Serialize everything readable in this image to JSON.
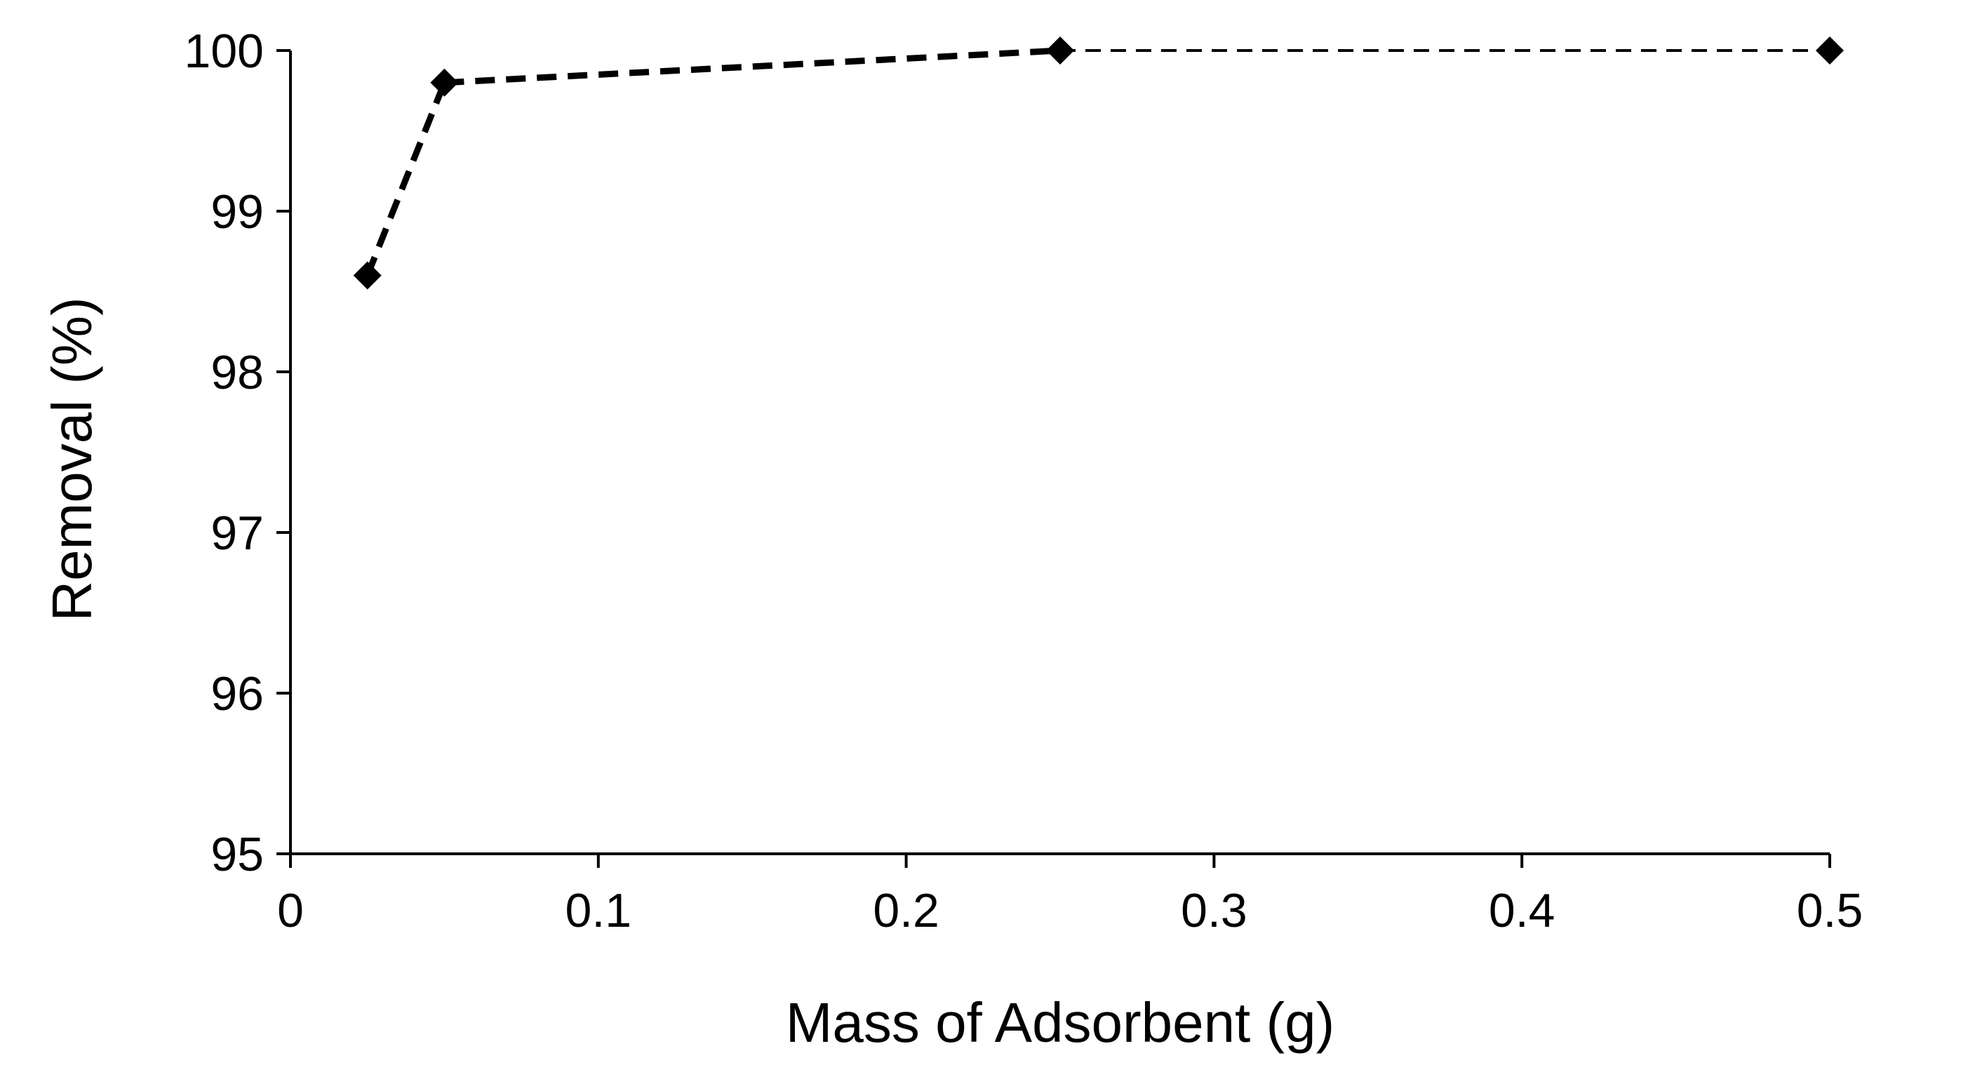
{
  "chart_data": {
    "type": "line",
    "title": "",
    "xlabel": "Mass of Adsorbent (g)",
    "ylabel": "Removal (%)",
    "xlim": [
      0,
      0.5
    ],
    "ylim": [
      95,
      100
    ],
    "x_ticks": [
      0,
      0.1,
      0.2,
      0.3,
      0.4,
      0.5
    ],
    "x_tick_labels": [
      "0",
      "0.1",
      "0.2",
      "0.3",
      "0.4",
      "0.5"
    ],
    "y_ticks": [
      95,
      96,
      97,
      98,
      99,
      100
    ],
    "y_tick_labels": [
      "95",
      "96",
      "97",
      "98",
      "99",
      "100"
    ],
    "grid": false,
    "legend": "none",
    "series": [
      {
        "name": "Removal",
        "marker": "diamond",
        "line_style": "dashed",
        "color": "#000000",
        "x": [
          0.025,
          0.05,
          0.25,
          0.5
        ],
        "y": [
          98.6,
          99.8,
          100,
          100
        ]
      }
    ]
  }
}
